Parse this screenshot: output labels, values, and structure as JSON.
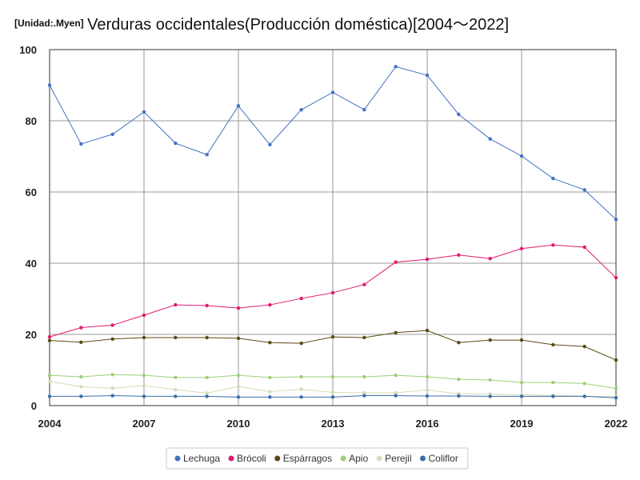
{
  "header": {
    "unit": "[Unidad:.Myen]",
    "title": "Verduras occidentales(Producción doméstica)[2004〜2022]"
  },
  "chart_data": {
    "type": "line",
    "title": "Verduras occidentales(Producción doméstica)[2004〜2022]",
    "unit": "[Unidad:.Myen]",
    "x": [
      2004,
      2005,
      2006,
      2007,
      2008,
      2009,
      2010,
      2011,
      2012,
      2013,
      2014,
      2015,
      2016,
      2017,
      2018,
      2019,
      2020,
      2021,
      2022
    ],
    "xticks": [
      2004,
      2007,
      2010,
      2013,
      2016,
      2019,
      2022
    ],
    "yticks": [
      0,
      20,
      40,
      60,
      80,
      100
    ],
    "xlim": [
      2004,
      2022
    ],
    "ylim": [
      0,
      100
    ],
    "grid": true,
    "legend_position": "bottom",
    "series": [
      {
        "name": "Lechuga",
        "color": "#4472c4",
        "values": [
          90.0,
          73.5,
          76.2,
          82.5,
          73.7,
          70.5,
          84.2,
          73.3,
          83.1,
          88.0,
          83.1,
          95.2,
          92.8,
          81.8,
          74.9,
          70.1,
          63.8,
          60.6,
          52.3
        ]
      },
      {
        "name": "Brócoli",
        "color": "#e0196e",
        "values": [
          19.3,
          21.9,
          22.6,
          25.4,
          28.3,
          28.1,
          27.4,
          28.3,
          30.1,
          31.7,
          34.0,
          40.3,
          41.1,
          42.3,
          41.3,
          44.1,
          45.1,
          44.5,
          35.9
        ]
      },
      {
        "name": "Espárragos",
        "color": "#5a4a14",
        "values": [
          18.3,
          17.8,
          18.7,
          19.1,
          19.1,
          19.1,
          18.9,
          17.7,
          17.5,
          19.3,
          19.1,
          20.5,
          21.1,
          17.7,
          18.4,
          18.4,
          17.1,
          16.6,
          12.8
        ]
      },
      {
        "name": "Apio",
        "color": "#9dd07a",
        "values": [
          8.5,
          8.1,
          8.7,
          8.5,
          7.9,
          7.9,
          8.5,
          7.9,
          8.1,
          8.1,
          8.1,
          8.5,
          8.1,
          7.4,
          7.2,
          6.5,
          6.5,
          6.2,
          4.8
        ]
      },
      {
        "name": "Perejil",
        "color": "#d5dcb7",
        "values": [
          6.8,
          5.3,
          4.9,
          5.6,
          4.5,
          3.5,
          5.4,
          3.9,
          4.6,
          3.7,
          3.6,
          3.6,
          4.4,
          3.3,
          3.3,
          3.0,
          2.9,
          2.6,
          2.5
        ]
      },
      {
        "name": "Coliflor",
        "color": "#3a6ea8",
        "values": [
          2.6,
          2.6,
          2.8,
          2.6,
          2.6,
          2.6,
          2.4,
          2.4,
          2.4,
          2.4,
          2.8,
          2.8,
          2.7,
          2.7,
          2.6,
          2.6,
          2.6,
          2.6,
          2.2
        ]
      }
    ]
  }
}
